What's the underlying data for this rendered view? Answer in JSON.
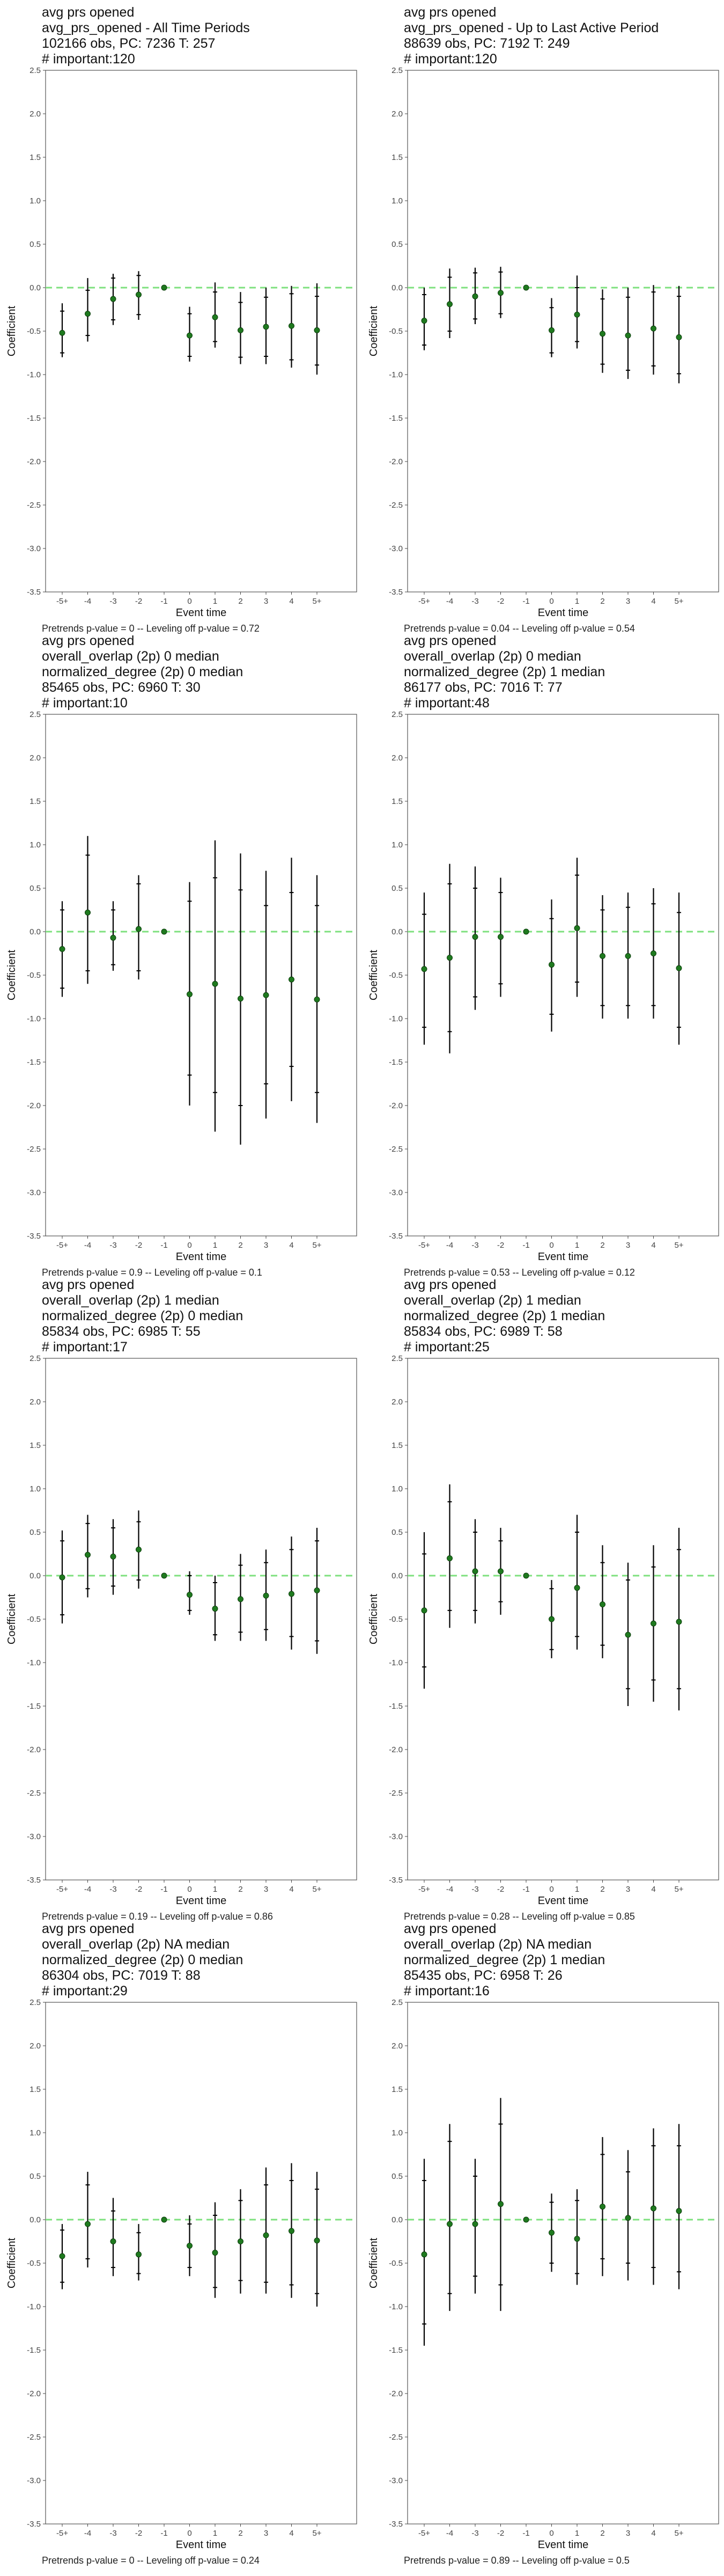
{
  "chart_data": [
    {
      "type": "scatter",
      "title_lines": [
        "avg prs opened",
        "avg_prs_opened - All Time Periods",
        "102166 obs, PC: 7236 T: 257",
        "# important:120"
      ],
      "xlabel": "Event time",
      "ylabel": "Coefficient",
      "categories": [
        "-5+",
        "-4",
        "-3",
        "-2",
        "-1",
        "0",
        "1",
        "2",
        "3",
        "4",
        "5+"
      ],
      "ylim": [
        -3.5,
        2.5
      ],
      "yticks": [
        "2.5",
        "2.0",
        "1.5",
        "1.0",
        "0.5",
        "0.0",
        "-0.5",
        "-1.0",
        "-1.5",
        "-2.0",
        "-2.5",
        "-3.0",
        "-3.5"
      ],
      "estimates": [
        -0.52,
        -0.3,
        -0.13,
        -0.08,
        0.0,
        -0.55,
        -0.34,
        -0.49,
        -0.45,
        -0.44,
        -0.49
      ],
      "ci95_low": [
        -0.8,
        -0.62,
        -0.43,
        -0.37,
        0.0,
        -0.85,
        -0.69,
        -0.88,
        -0.88,
        -0.92,
        -1.0
      ],
      "ci95_high": [
        -0.18,
        0.11,
        0.16,
        0.19,
        0.0,
        -0.22,
        0.06,
        -0.05,
        0.0,
        0.02,
        0.05
      ],
      "ci90_low": [
        -0.75,
        -0.55,
        -0.37,
        -0.31,
        0.0,
        -0.79,
        -0.62,
        -0.8,
        -0.79,
        -0.83,
        -0.89
      ],
      "ci90_high": [
        -0.27,
        -0.03,
        0.11,
        0.14,
        0.0,
        -0.3,
        -0.05,
        -0.17,
        -0.11,
        -0.07,
        -0.1
      ],
      "footer": "Pretrends p-value = 0 -- Leveling off p-value = 0.72"
    },
    {
      "type": "scatter",
      "title_lines": [
        "avg prs opened",
        "avg_prs_opened - Up to Last Active Period",
        "88639 obs, PC: 7192 T: 249",
        "# important:120"
      ],
      "xlabel": "Event time",
      "ylabel": "Coefficient",
      "categories": [
        "-5+",
        "-4",
        "-3",
        "-2",
        "-1",
        "0",
        "1",
        "2",
        "3",
        "4",
        "5+"
      ],
      "ylim": [
        -3.5,
        2.5
      ],
      "yticks": [
        "2.5",
        "2.0",
        "1.5",
        "1.0",
        "0.5",
        "0.0",
        "-0.5",
        "-1.0",
        "-1.5",
        "-2.0",
        "-2.5",
        "-3.0",
        "-3.5"
      ],
      "estimates": [
        -0.38,
        -0.19,
        -0.1,
        -0.06,
        0.0,
        -0.49,
        -0.31,
        -0.53,
        -0.55,
        -0.47,
        -0.57
      ],
      "ci95_low": [
        -0.72,
        -0.58,
        -0.42,
        -0.35,
        0.0,
        -0.8,
        -0.7,
        -0.98,
        -1.05,
        -1.0,
        -1.1
      ],
      "ci95_high": [
        0.0,
        0.22,
        0.23,
        0.24,
        0.0,
        -0.12,
        0.14,
        -0.02,
        0.0,
        0.03,
        0.02
      ],
      "ci90_low": [
        -0.66,
        -0.5,
        -0.36,
        -0.3,
        0.0,
        -0.75,
        -0.62,
        -0.88,
        -0.95,
        -0.9,
        -0.99
      ],
      "ci90_high": [
        -0.08,
        0.12,
        0.17,
        0.18,
        0.0,
        -0.23,
        0.0,
        -0.13,
        -0.11,
        -0.05,
        -0.1
      ],
      "footer": "Pretrends p-value = 0.04 -- Leveling off p-value = 0.54"
    },
    {
      "type": "scatter",
      "title_lines": [
        "avg prs opened",
        "overall_overlap (2p) 0 median",
        "normalized_degree (2p) 0 median",
        "85465 obs, PC: 6960 T: 30",
        "# important:10"
      ],
      "xlabel": "Event time",
      "ylabel": "Coefficient",
      "categories": [
        "-5+",
        "-4",
        "-3",
        "-2",
        "-1",
        "0",
        "1",
        "2",
        "3",
        "4",
        "5+"
      ],
      "ylim": [
        -3.5,
        2.5
      ],
      "yticks": [
        "2.5",
        "2.0",
        "1.5",
        "1.0",
        "0.5",
        "0.0",
        "-0.5",
        "-1.0",
        "-1.5",
        "-2.0",
        "-2.5",
        "-3.0",
        "-3.5"
      ],
      "estimates": [
        -0.2,
        0.22,
        -0.07,
        0.03,
        0.0,
        -0.72,
        -0.6,
        -0.77,
        -0.73,
        -0.55,
        -0.78
      ],
      "ci95_low": [
        -0.75,
        -0.6,
        -0.45,
        -0.55,
        0.0,
        -2.0,
        -2.3,
        -2.45,
        -2.15,
        -1.95,
        -2.2
      ],
      "ci95_high": [
        0.35,
        1.1,
        0.35,
        0.65,
        0.0,
        0.57,
        1.05,
        0.9,
        0.7,
        0.85,
        0.65
      ],
      "ci90_low": [
        -0.65,
        -0.45,
        -0.38,
        -0.45,
        0.0,
        -1.65,
        -1.85,
        -2.0,
        -1.75,
        -1.55,
        -1.85
      ],
      "ci90_high": [
        0.25,
        0.88,
        0.25,
        0.55,
        0.0,
        0.35,
        0.62,
        0.48,
        0.3,
        0.45,
        0.3
      ],
      "footer": "Pretrends p-value = 0.9 -- Leveling off p-value = 0.1"
    },
    {
      "type": "scatter",
      "title_lines": [
        "avg prs opened",
        "overall_overlap (2p) 0 median",
        "normalized_degree (2p) 1 median",
        "86177 obs, PC: 7016 T: 77",
        "# important:48"
      ],
      "xlabel": "Event time",
      "ylabel": "Coefficient",
      "categories": [
        "-5+",
        "-4",
        "-3",
        "-2",
        "-1",
        "0",
        "1",
        "2",
        "3",
        "4",
        "5+"
      ],
      "ylim": [
        -3.5,
        2.5
      ],
      "yticks": [
        "2.5",
        "2.0",
        "1.5",
        "1.0",
        "0.5",
        "0.0",
        "-0.5",
        "-1.0",
        "-1.5",
        "-2.0",
        "-2.5",
        "-3.0",
        "-3.5"
      ],
      "estimates": [
        -0.43,
        -0.3,
        -0.06,
        -0.06,
        0.0,
        -0.38,
        0.04,
        -0.28,
        -0.28,
        -0.25,
        -0.42
      ],
      "ci95_low": [
        -1.3,
        -1.4,
        -0.9,
        -0.75,
        0.0,
        -1.15,
        -0.75,
        -1.0,
        -1.0,
        -1.0,
        -1.3
      ],
      "ci95_high": [
        0.45,
        0.78,
        0.75,
        0.62,
        0.0,
        0.37,
        0.85,
        0.42,
        0.45,
        0.5,
        0.45
      ],
      "ci90_low": [
        -1.1,
        -1.15,
        -0.75,
        -0.6,
        0.0,
        -0.95,
        -0.58,
        -0.85,
        -0.85,
        -0.85,
        -1.1
      ],
      "ci90_high": [
        0.2,
        0.55,
        0.5,
        0.45,
        0.0,
        0.15,
        0.65,
        0.25,
        0.28,
        0.32,
        0.22
      ],
      "footer": "Pretrends p-value = 0.53 -- Leveling off p-value = 0.12"
    },
    {
      "type": "scatter",
      "title_lines": [
        "avg prs opened",
        "overall_overlap (2p) 1 median",
        "normalized_degree (2p) 0 median",
        "85834 obs, PC: 6985 T: 55",
        "# important:17"
      ],
      "xlabel": "Event time",
      "ylabel": "Coefficient",
      "categories": [
        "-5+",
        "-4",
        "-3",
        "-2",
        "-1",
        "0",
        "1",
        "2",
        "3",
        "4",
        "5+"
      ],
      "ylim": [
        -3.5,
        2.5
      ],
      "yticks": [
        "2.5",
        "2.0",
        "1.5",
        "1.0",
        "0.5",
        "0.0",
        "-0.5",
        "-1.0",
        "-1.5",
        "-2.0",
        "-2.5",
        "-3.0",
        "-3.5"
      ],
      "estimates": [
        -0.02,
        0.24,
        0.22,
        0.3,
        0.0,
        -0.22,
        -0.38,
        -0.27,
        -0.23,
        -0.21,
        -0.17
      ],
      "ci95_low": [
        -0.55,
        -0.25,
        -0.22,
        -0.15,
        0.0,
        -0.45,
        -0.75,
        -0.75,
        -0.75,
        -0.85,
        -0.9
      ],
      "ci95_high": [
        0.52,
        0.7,
        0.65,
        0.75,
        0.0,
        0.05,
        0.0,
        0.25,
        0.3,
        0.45,
        0.55
      ],
      "ci90_low": [
        -0.45,
        -0.15,
        -0.12,
        -0.05,
        0.0,
        -0.4,
        -0.68,
        -0.65,
        -0.62,
        -0.7,
        -0.75
      ],
      "ci90_high": [
        0.4,
        0.6,
        0.55,
        0.62,
        0.0,
        0.0,
        -0.08,
        0.12,
        0.15,
        0.3,
        0.4
      ],
      "footer": "Pretrends p-value = 0.19 -- Leveling off p-value = 0.86"
    },
    {
      "type": "scatter",
      "title_lines": [
        "avg prs opened",
        "overall_overlap (2p) 1 median",
        "normalized_degree (2p) 1 median",
        "85834 obs, PC: 6989 T: 58",
        "# important:25"
      ],
      "xlabel": "Event time",
      "ylabel": "Coefficient",
      "categories": [
        "-5+",
        "-4",
        "-3",
        "-2",
        "-1",
        "0",
        "1",
        "2",
        "3",
        "4",
        "5+"
      ],
      "ylim": [
        -3.5,
        2.5
      ],
      "yticks": [
        "2.5",
        "2.0",
        "1.5",
        "1.0",
        "0.5",
        "0.0",
        "-0.5",
        "-1.0",
        "-1.5",
        "-2.0",
        "-2.5",
        "-3.0",
        "-3.5"
      ],
      "estimates": [
        -0.4,
        0.2,
        0.05,
        0.05,
        0.0,
        -0.5,
        -0.14,
        -0.33,
        -0.68,
        -0.55,
        -0.53
      ],
      "ci95_low": [
        -1.3,
        -0.6,
        -0.55,
        -0.45,
        0.0,
        -0.95,
        -0.85,
        -0.95,
        -1.5,
        -1.45,
        -1.55
      ],
      "ci95_high": [
        0.5,
        1.05,
        0.65,
        0.55,
        0.0,
        -0.05,
        0.7,
        0.35,
        0.15,
        0.35,
        0.55
      ],
      "ci90_low": [
        -1.05,
        -0.4,
        -0.4,
        -0.3,
        0.0,
        -0.85,
        -0.7,
        -0.8,
        -1.3,
        -1.2,
        -1.3
      ],
      "ci90_high": [
        0.25,
        0.85,
        0.5,
        0.4,
        0.0,
        -0.15,
        0.5,
        0.15,
        -0.05,
        0.1,
        0.3
      ],
      "footer": "Pretrends p-value = 0.28 -- Leveling off p-value = 0.85"
    },
    {
      "type": "scatter",
      "title_lines": [
        "avg prs opened",
        "overall_overlap (2p) NA median",
        "normalized_degree (2p) 0 median",
        "86304 obs, PC: 7019 T: 88",
        "# important:29"
      ],
      "xlabel": "Event time",
      "ylabel": "Coefficient",
      "categories": [
        "-5+",
        "-4",
        "-3",
        "-2",
        "-1",
        "0",
        "1",
        "2",
        "3",
        "4",
        "5+"
      ],
      "ylim": [
        -3.5,
        2.5
      ],
      "yticks": [
        "2.5",
        "2.0",
        "1.5",
        "1.0",
        "0.5",
        "0.0",
        "-0.5",
        "-1.0",
        "-1.5",
        "-2.0",
        "-2.5",
        "-3.0",
        "-3.5"
      ],
      "estimates": [
        -0.42,
        -0.05,
        -0.25,
        -0.4,
        0.0,
        -0.3,
        -0.38,
        -0.25,
        -0.18,
        -0.13,
        -0.24
      ],
      "ci95_low": [
        -0.8,
        -0.55,
        -0.65,
        -0.7,
        0.0,
        -0.65,
        -0.9,
        -0.85,
        -0.85,
        -0.9,
        -1.0
      ],
      "ci95_high": [
        -0.05,
        0.55,
        0.25,
        -0.05,
        0.0,
        0.05,
        0.2,
        0.35,
        0.6,
        0.65,
        0.55
      ],
      "ci90_low": [
        -0.72,
        -0.45,
        -0.55,
        -0.62,
        0.0,
        -0.55,
        -0.78,
        -0.7,
        -0.72,
        -0.75,
        -0.85
      ],
      "ci90_high": [
        -0.12,
        0.4,
        0.1,
        -0.15,
        0.0,
        -0.05,
        0.05,
        0.22,
        0.4,
        0.45,
        0.35
      ],
      "footer": "Pretrends p-value = 0 -- Leveling off p-value = 0.24"
    },
    {
      "type": "scatter",
      "title_lines": [
        "avg prs opened",
        "overall_overlap (2p) NA median",
        "normalized_degree (2p) 1 median",
        "85435 obs, PC: 6958 T: 26",
        "# important:16"
      ],
      "xlabel": "Event time",
      "ylabel": "Coefficient",
      "categories": [
        "-5+",
        "-4",
        "-3",
        "-2",
        "-1",
        "0",
        "1",
        "2",
        "3",
        "4",
        "5+"
      ],
      "ylim": [
        -3.5,
        2.5
      ],
      "yticks": [
        "2.5",
        "2.0",
        "1.5",
        "1.0",
        "0.5",
        "0.0",
        "-0.5",
        "-1.0",
        "-1.5",
        "-2.0",
        "-2.5",
        "-3.0",
        "-3.5"
      ],
      "estimates": [
        -0.4,
        -0.05,
        -0.05,
        0.18,
        0.0,
        -0.15,
        -0.22,
        0.15,
        0.02,
        0.13,
        0.1
      ],
      "ci95_low": [
        -1.45,
        -1.05,
        -0.85,
        -1.05,
        0.0,
        -0.6,
        -0.75,
        -0.65,
        -0.7,
        -0.75,
        -0.8
      ],
      "ci95_high": [
        0.7,
        1.1,
        0.7,
        1.4,
        0.0,
        0.3,
        0.35,
        0.95,
        0.8,
        1.05,
        1.1
      ],
      "ci90_low": [
        -1.2,
        -0.85,
        -0.65,
        -0.75,
        0.0,
        -0.5,
        -0.62,
        -0.45,
        -0.5,
        -0.55,
        -0.6
      ],
      "ci90_high": [
        0.45,
        0.9,
        0.5,
        1.1,
        0.0,
        0.2,
        0.22,
        0.75,
        0.55,
        0.85,
        0.85
      ],
      "footer": "Pretrends p-value = 0.89 -- Leveling off p-value = 0.5"
    }
  ],
  "colors": {
    "point": "#1f7a1f",
    "zero_line": "#7fe07f",
    "bar": "#000000",
    "frame": "#555555"
  }
}
